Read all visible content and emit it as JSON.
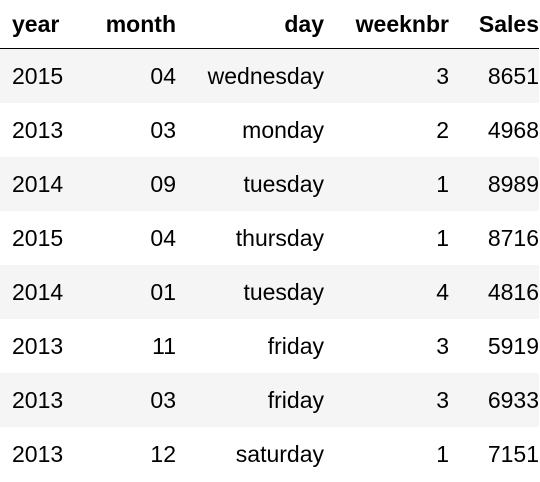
{
  "table": {
    "columns": [
      "year",
      "month",
      "day",
      "weeknbr",
      "Sales"
    ],
    "rows": [
      [
        "2015",
        "04",
        "wednesday",
        "3",
        "8651"
      ],
      [
        "2013",
        "03",
        "monday",
        "2",
        "4968"
      ],
      [
        "2014",
        "09",
        "tuesday",
        "1",
        "8989"
      ],
      [
        "2015",
        "04",
        "thursday",
        "1",
        "8716"
      ],
      [
        "2014",
        "01",
        "tuesday",
        "4",
        "4816"
      ],
      [
        "2013",
        "11",
        "friday",
        "3",
        "5919"
      ],
      [
        "2013",
        "03",
        "friday",
        "3",
        "6933"
      ],
      [
        "2013",
        "12",
        "saturday",
        "1",
        "7151"
      ]
    ]
  }
}
